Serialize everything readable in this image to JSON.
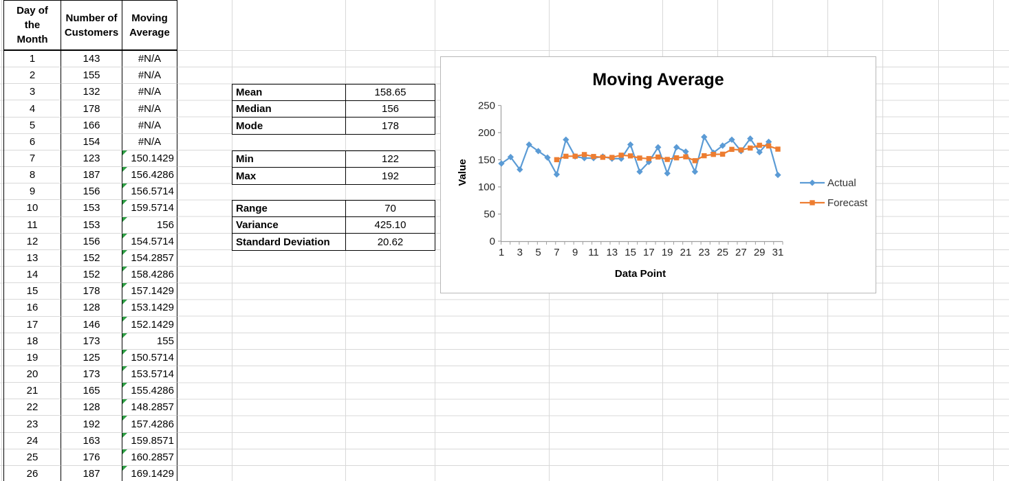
{
  "table": {
    "headers": [
      "Day of the Month",
      "Number of Customers",
      "Moving Average"
    ],
    "flag_color": "#2e9e44",
    "rows": [
      {
        "day": "1",
        "customers": "143",
        "moving_average": "#N/A",
        "flag": false
      },
      {
        "day": "2",
        "customers": "155",
        "moving_average": "#N/A",
        "flag": false
      },
      {
        "day": "3",
        "customers": "132",
        "moving_average": "#N/A",
        "flag": false
      },
      {
        "day": "4",
        "customers": "178",
        "moving_average": "#N/A",
        "flag": false
      },
      {
        "day": "5",
        "customers": "166",
        "moving_average": "#N/A",
        "flag": false
      },
      {
        "day": "6",
        "customers": "154",
        "moving_average": "#N/A",
        "flag": false
      },
      {
        "day": "7",
        "customers": "123",
        "moving_average": "150.1429",
        "flag": true
      },
      {
        "day": "8",
        "customers": "187",
        "moving_average": "156.4286",
        "flag": true
      },
      {
        "day": "9",
        "customers": "156",
        "moving_average": "156.5714",
        "flag": true
      },
      {
        "day": "10",
        "customers": "153",
        "moving_average": "159.5714",
        "flag": true
      },
      {
        "day": "11",
        "customers": "153",
        "moving_average": "156",
        "flag": true
      },
      {
        "day": "12",
        "customers": "156",
        "moving_average": "154.5714",
        "flag": true
      },
      {
        "day": "13",
        "customers": "152",
        "moving_average": "154.2857",
        "flag": true
      },
      {
        "day": "14",
        "customers": "152",
        "moving_average": "158.4286",
        "flag": true
      },
      {
        "day": "15",
        "customers": "178",
        "moving_average": "157.1429",
        "flag": true
      },
      {
        "day": "16",
        "customers": "128",
        "moving_average": "153.1429",
        "flag": true
      },
      {
        "day": "17",
        "customers": "146",
        "moving_average": "152.1429",
        "flag": true
      },
      {
        "day": "18",
        "customers": "173",
        "moving_average": "155",
        "flag": true
      },
      {
        "day": "19",
        "customers": "125",
        "moving_average": "150.5714",
        "flag": true
      },
      {
        "day": "20",
        "customers": "173",
        "moving_average": "153.5714",
        "flag": true
      },
      {
        "day": "21",
        "customers": "165",
        "moving_average": "155.4286",
        "flag": true
      },
      {
        "day": "22",
        "customers": "128",
        "moving_average": "148.2857",
        "flag": true
      },
      {
        "day": "23",
        "customers": "192",
        "moving_average": "157.4286",
        "flag": true
      },
      {
        "day": "24",
        "customers": "163",
        "moving_average": "159.8571",
        "flag": true
      },
      {
        "day": "25",
        "customers": "176",
        "moving_average": "160.2857",
        "flag": true
      },
      {
        "day": "26",
        "customers": "187",
        "moving_average": "169.1429",
        "flag": true
      }
    ]
  },
  "stats": {
    "groups": [
      {
        "rows": [
          {
            "label": "Mean",
            "value": "158.65"
          },
          {
            "label": "Median",
            "value": "156"
          },
          {
            "label": "Mode",
            "value": "178"
          }
        ]
      },
      {
        "rows": [
          {
            "label": "Min",
            "value": "122"
          },
          {
            "label": "Max",
            "value": "192"
          }
        ]
      },
      {
        "rows": [
          {
            "label": "Range",
            "value": "70"
          },
          {
            "label": "Variance",
            "value": "425.10"
          },
          {
            "label": "Standard Deviation",
            "value": "20.62"
          }
        ]
      }
    ]
  },
  "chart_data": {
    "type": "line",
    "title": "Moving Average",
    "xlabel": "Data Point",
    "ylabel": "Value",
    "ylim": [
      0,
      250
    ],
    "yticks": [
      0,
      50,
      100,
      150,
      200,
      250
    ],
    "xticks": [
      1,
      3,
      5,
      7,
      9,
      11,
      13,
      15,
      17,
      19,
      21,
      23,
      25,
      27,
      29,
      31
    ],
    "x": [
      1,
      2,
      3,
      4,
      5,
      6,
      7,
      8,
      9,
      10,
      11,
      12,
      13,
      14,
      15,
      16,
      17,
      18,
      19,
      20,
      21,
      22,
      23,
      24,
      25,
      26,
      27,
      28,
      29,
      30,
      31
    ],
    "grid": false,
    "legend_position": "right",
    "series": [
      {
        "name": "Actual",
        "color": "#5B9BD5",
        "marker": "diamond",
        "start_x": 1,
        "values": [
          143,
          155,
          132,
          178,
          166,
          154,
          123,
          187,
          156,
          153,
          153,
          156,
          152,
          152,
          178,
          128,
          146,
          173,
          125,
          173,
          165,
          128,
          192,
          163,
          176,
          187,
          166,
          189,
          164,
          183,
          122
        ]
      },
      {
        "name": "Forecast",
        "color": "#ED7D31",
        "marker": "square",
        "start_x": 7,
        "values": [
          150.1429,
          156.4286,
          156.5714,
          159.5714,
          156,
          154.5714,
          154.2857,
          158.4286,
          157.1429,
          153.1429,
          152.1429,
          155,
          150.5714,
          153.5714,
          155.4286,
          148.2857,
          157.4286,
          159.8571,
          160.2857,
          169.1429,
          168.1429,
          171.5714,
          176.7143,
          175.4286,
          169.5714
        ]
      }
    ]
  }
}
